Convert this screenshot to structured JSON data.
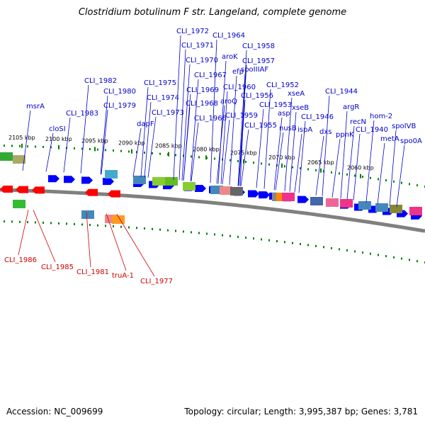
{
  "title": "Clostridium botulinum F str. Langeland, complete genome",
  "footer": {
    "accession": "Accession: NC_009699",
    "summary": "Topology: circular; Length: 3,995,387 bp; Genes: 3,781"
  },
  "colors": {
    "forward_label": "#0000cc",
    "reverse_label": "#cc0000",
    "forward_gene": "#0000ff",
    "reverse_gene": "#ff0000",
    "backbone": "#808080",
    "tick": "#008000"
  },
  "scale_ticks": [
    {
      "label": "2105 kbp"
    },
    {
      "label": "2100 kbp"
    },
    {
      "label": "2095 kbp"
    },
    {
      "label": "2090 kbp"
    },
    {
      "label": "2085 kbp"
    },
    {
      "label": "2080 kbp"
    },
    {
      "label": "2075 kbp"
    },
    {
      "label": "2070 kbp"
    },
    {
      "label": "2065 kbp"
    },
    {
      "label": "2060 kbp"
    }
  ],
  "forward_labels": [
    {
      "text": "msrA"
    },
    {
      "text": "cloSI"
    },
    {
      "text": "CLI_1983"
    },
    {
      "text": "CLI_1982"
    },
    {
      "text": "CLI_1980"
    },
    {
      "text": "CLI_1979"
    },
    {
      "text": "dapF"
    },
    {
      "text": "CLI_1975"
    },
    {
      "text": "CLI_1974"
    },
    {
      "text": "CLI_1973"
    },
    {
      "text": "CLI_1972"
    },
    {
      "text": "CLI_1971"
    },
    {
      "text": "CLI_1970"
    },
    {
      "text": "CLI_1969"
    },
    {
      "text": "CLI_1968"
    },
    {
      "text": "CLI_1967"
    },
    {
      "text": "CLI_1966"
    },
    {
      "text": "CLI_1964"
    },
    {
      "text": "aroK"
    },
    {
      "text": "efp"
    },
    {
      "text": "CLI_1960"
    },
    {
      "text": "aroQ"
    },
    {
      "text": "CLI_1959"
    },
    {
      "text": "CLI_1958"
    },
    {
      "text": "CLI_1957"
    },
    {
      "text": "spoIIIAF"
    },
    {
      "text": "CLI_1956"
    },
    {
      "text": "CLI_1955"
    },
    {
      "text": "CLI_1953"
    },
    {
      "text": "CLI_1952"
    },
    {
      "text": "asp"
    },
    {
      "text": "xseA"
    },
    {
      "text": "xseB"
    },
    {
      "text": "nusB"
    },
    {
      "text": "ispA"
    },
    {
      "text": "CLI_1946"
    },
    {
      "text": "dxs"
    },
    {
      "text": "CLI_1944"
    },
    {
      "text": "argR"
    },
    {
      "text": "ppnK"
    },
    {
      "text": "recN"
    },
    {
      "text": "CLI_1940"
    },
    {
      "text": "hom-2"
    },
    {
      "text": "metA"
    },
    {
      "text": "spoIVB"
    },
    {
      "text": "spo0A"
    }
  ],
  "reverse_labels": [
    {
      "text": "CLI_1986"
    },
    {
      "text": "CLI_1985"
    },
    {
      "text": "CLI_1981"
    },
    {
      "text": "truA-1"
    },
    {
      "text": "CLI_1977"
    }
  ]
}
